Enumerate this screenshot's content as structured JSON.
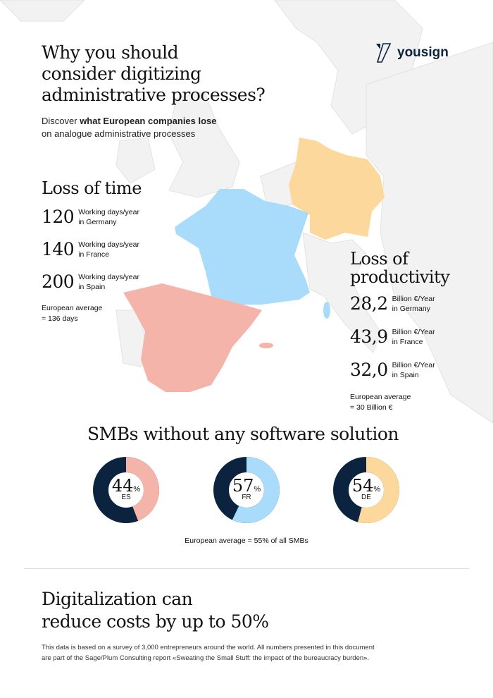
{
  "header": {
    "title_lines": [
      "Why you should",
      "consider digitizing",
      "administrative processes?"
    ],
    "subtitle_prefix": "Discover ",
    "subtitle_bold": "what European companies lose",
    "subtitle_line2": "on analogue administrative processes"
  },
  "logo": {
    "text": "yousign",
    "color": "#0c2340"
  },
  "colors": {
    "spain": "#f5b4aa",
    "france": "#a8dcfa",
    "germany": "#fcd89c",
    "navy": "#0c2340",
    "land": "#f2f2f2"
  },
  "loss_of_time": {
    "title": "Loss of time",
    "items": [
      {
        "value": "120",
        "line1": "Working days/year",
        "line2": "in Germany"
      },
      {
        "value": "140",
        "line1": "Working days/year",
        "line2": "in France"
      },
      {
        "value": "200",
        "line1": "Working days/year",
        "line2": "in Spain"
      }
    ],
    "avg_line1": "European average",
    "avg_line2": "= 136 days"
  },
  "loss_of_productivity": {
    "title_line1": "Loss of",
    "title_line2": "productivity",
    "items": [
      {
        "value": "28,2",
        "line1": "Billion €/Year",
        "line2": "in Germany"
      },
      {
        "value": "43,9",
        "line1": "Billion €/Year",
        "line2": "in France"
      },
      {
        "value": "32,0",
        "line1": "Billion €/Year",
        "line2": "in Spain"
      }
    ],
    "avg_line1": "European average",
    "avg_line2": "= 30 Billion €"
  },
  "smb": {
    "title": "SMBs without any software solution",
    "unit": "%",
    "donuts": [
      {
        "value": 44,
        "value_text": "44",
        "country": "ES",
        "color": "#f5b4aa"
      },
      {
        "value": 57,
        "value_text": "57",
        "country": "FR",
        "color": "#a8dcfa"
      },
      {
        "value": 54,
        "value_text": "54",
        "country": "DE",
        "color": "#fcd89c"
      }
    ],
    "average": "European average = 55% of all SMBs"
  },
  "conclusion": {
    "line1": "Digitalization can",
    "line2": "reduce costs by up to 50%"
  },
  "footnote": {
    "line1": "This data is based on a survey of 3,000 entrepreneurs around the world. All numbers presented in this document",
    "line2": "are part of the Sage/Plum Consulting report «Sweating the Small Stuff: the impact of the bureaucracy burden»."
  }
}
